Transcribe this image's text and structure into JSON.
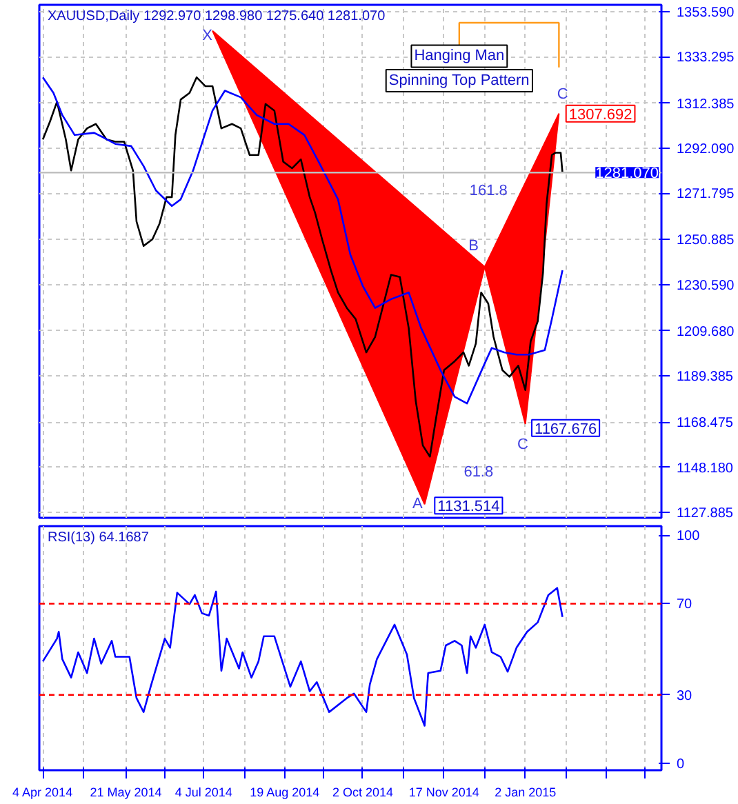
{
  "chart_data": [
    {
      "type": "line",
      "title": "XAUUSD,Daily  1292.970 1298.980 1275.640 1281.070",
      "xlim": [
        "2014-04-02",
        "2015-03-20"
      ],
      "ylim": [
        1125.4,
        1356.7
      ],
      "xticks": [
        {
          "value": "2014-04-04",
          "label": null
        },
        {
          "value": "2014-04-27",
          "label": null
        },
        {
          "value": "2014-05-21",
          "label": null
        },
        {
          "value": "2014-06-12",
          "label": null
        },
        {
          "value": "2014-07-04",
          "label": null
        },
        {
          "value": "2014-07-27",
          "label": null
        },
        {
          "value": "2014-08-19",
          "label": null
        },
        {
          "value": "2014-09-10",
          "label": null
        },
        {
          "value": "2014-10-02",
          "label": null
        },
        {
          "value": "2014-10-25",
          "label": null
        },
        {
          "value": "2014-11-17",
          "label": null
        },
        {
          "value": "2014-12-10",
          "label": null
        },
        {
          "value": "2015-01-02",
          "label": null
        },
        {
          "value": "2015-01-25",
          "label": null
        },
        {
          "value": "2015-02-17",
          "label": null
        },
        {
          "value": "2015-03-11",
          "label": null
        }
      ],
      "yticks": [
        {
          "value": 1127.885,
          "label": "1127.885"
        },
        {
          "value": 1148.18,
          "label": "1148.180"
        },
        {
          "value": 1168.475,
          "label": "1168.475"
        },
        {
          "value": 1189.385,
          "label": "1189.385"
        },
        {
          "value": 1209.68,
          "label": "1209.680"
        },
        {
          "value": 1230.59,
          "label": "1230.590"
        },
        {
          "value": 1250.885,
          "label": "1250.885"
        },
        {
          "value": 1271.795,
          "label": "1271.795"
        },
        {
          "value": 1292.09,
          "label": "1292.090"
        },
        {
          "value": 1312.385,
          "label": "1312.385"
        },
        {
          "value": 1333.295,
          "label": "1333.295"
        },
        {
          "value": 1353.59,
          "label": "1353.590"
        }
      ],
      "tick_labels": "y",
      "grid": true,
      "series": [
        {
          "type": "area",
          "color": "#ff0000",
          "x": [
            "2014-07-09",
            "2014-11-06",
            "2014-12-10"
          ],
          "values": [
            1345,
            1131.514,
            1238.6
          ]
        },
        {
          "type": "area",
          "color": "#ff0000",
          "x": [
            "2014-12-10",
            "2015-01-02",
            "2015-01-21"
          ],
          "values": [
            1238.6,
            1167.676,
            1307.692
          ]
        },
        {
          "type": "line",
          "color": "#000000",
          "x": [
            "2014-04-04",
            "2014-04-08",
            "2014-04-12",
            "2014-04-17",
            "2014-04-20",
            "2014-04-24",
            "2014-04-29",
            "2014-05-04",
            "2014-05-10",
            "2014-05-15",
            "2014-05-20",
            "2014-05-25",
            "2014-05-27",
            "2014-05-31",
            "2014-06-05",
            "2014-06-09",
            "2014-06-13",
            "2014-06-16",
            "2014-06-18",
            "2014-06-21",
            "2014-06-26",
            "2014-06-30",
            "2014-07-05",
            "2014-07-09",
            "2014-07-14",
            "2014-07-20",
            "2014-07-25",
            "2014-07-30",
            "2014-08-04",
            "2014-08-08",
            "2014-08-13",
            "2014-08-18",
            "2014-08-23",
            "2014-08-28",
            "2014-09-02",
            "2014-09-05",
            "2014-09-09",
            "2014-09-14",
            "2014-09-18",
            "2014-09-23",
            "2014-09-28",
            "2014-10-04",
            "2014-10-09",
            "2014-10-18",
            "2014-10-23",
            "2014-10-28",
            "2014-11-01",
            "2014-11-05",
            "2014-11-09",
            "2014-11-12",
            "2014-11-17",
            "2014-11-23",
            "2014-11-28",
            "2014-12-01",
            "2014-12-05",
            "2014-12-08",
            "2014-12-12",
            "2014-12-15",
            "2014-12-20",
            "2014-12-24",
            "2014-12-29",
            "2015-01-02",
            "2015-01-05",
            "2015-01-09",
            "2015-01-12",
            "2015-01-14",
            "2015-01-17",
            "2015-01-19",
            "2015-01-22",
            "2015-01-23"
          ],
          "values": [
            1296,
            1304,
            1313,
            1296,
            1282,
            1296,
            1301,
            1303,
            1296,
            1295,
            1295,
            1282,
            1259,
            1248,
            1251,
            1258,
            1270,
            1270,
            1298,
            1314,
            1317,
            1324,
            1320,
            1320,
            1301,
            1303,
            1301,
            1289,
            1289,
            1312,
            1309,
            1286,
            1283,
            1287,
            1270,
            1263,
            1251,
            1237,
            1227,
            1220,
            1215,
            1200,
            1207,
            1235,
            1234,
            1211,
            1178,
            1158,
            1153,
            1168,
            1192,
            1196,
            1200,
            1194,
            1204,
            1227,
            1222,
            1207,
            1192,
            1189,
            1194,
            1183,
            1205,
            1214,
            1236,
            1267,
            1289,
            1290,
            1290,
            1281.07
          ]
        },
        {
          "type": "line",
          "color": "#0000ff",
          "x": [
            "2014-04-04",
            "2014-04-10",
            "2014-04-15",
            "2014-04-22",
            "2014-05-03",
            "2014-05-08",
            "2014-05-15",
            "2014-05-24",
            "2014-05-31",
            "2014-06-07",
            "2014-06-16",
            "2014-06-21",
            "2014-06-28",
            "2014-07-09",
            "2014-07-16",
            "2014-07-25",
            "2014-08-03",
            "2014-08-13",
            "2014-08-21",
            "2014-08-30",
            "2014-09-07",
            "2014-09-18",
            "2014-09-25",
            "2014-10-02",
            "2014-10-09",
            "2014-10-18",
            "2014-10-28",
            "2014-11-04",
            "2014-11-15",
            "2014-11-23",
            "2014-11-30",
            "2014-12-10",
            "2014-12-14",
            "2014-12-21",
            "2014-12-28",
            "2015-01-04",
            "2015-01-13",
            "2015-01-17",
            "2015-01-23"
          ],
          "values": [
            1324,
            1317,
            1307,
            1298,
            1299,
            1297,
            1294,
            1293,
            1284,
            1273,
            1266,
            1269,
            1282,
            1309,
            1318,
            1315,
            1307,
            1303,
            1303,
            1298,
            1286,
            1269,
            1244,
            1230,
            1220,
            1224,
            1227,
            1211,
            1192,
            1180,
            1177,
            1195,
            1202,
            1200,
            1199,
            1199,
            1201,
            1215,
            1237
          ]
        }
      ],
      "ref_lines": [
        {
          "axis": "y",
          "value": 1281.07,
          "label": "1281.070",
          "color": "#c0c0c0",
          "line_style": "solid"
        }
      ],
      "annotations": [
        "Hanging Man",
        "Spinning Top Pattern",
        "X",
        "A",
        "B",
        "C",
        "C",
        "161.8",
        "61.8",
        "1131.514",
        "1167.676",
        "1307.692"
      ]
    },
    {
      "type": "line",
      "title": "RSI(13) 64.1687",
      "xlim": [
        "2014-04-02",
        "2015-03-20"
      ],
      "ylim": [
        -3,
        104
      ],
      "xticks": [
        {
          "value": "2014-04-04",
          "label": "4 Apr 2014"
        },
        {
          "value": "2014-04-27",
          "label": null
        },
        {
          "value": "2014-05-21",
          "label": "21 May 2014"
        },
        {
          "value": "2014-06-12",
          "label": null
        },
        {
          "value": "2014-07-04",
          "label": "4 Jul 2014"
        },
        {
          "value": "2014-07-27",
          "label": null
        },
        {
          "value": "2014-08-19",
          "label": "19 Aug 2014"
        },
        {
          "value": "2014-09-10",
          "label": null
        },
        {
          "value": "2014-10-02",
          "label": "2 Oct 2014"
        },
        {
          "value": "2014-10-25",
          "label": null
        },
        {
          "value": "2014-11-17",
          "label": "17 Nov 2014"
        },
        {
          "value": "2014-12-10",
          "label": null
        },
        {
          "value": "2015-01-02",
          "label": "2 Jan 2015"
        },
        {
          "value": "2015-01-25",
          "label": null
        },
        {
          "value": "2015-02-17",
          "label": null
        },
        {
          "value": "2015-03-11",
          "label": null
        }
      ],
      "yticks": [
        0,
        30,
        70,
        100
      ],
      "grid": "x",
      "series": [
        {
          "color": "#0000ff",
          "x": [
            "2014-04-04",
            "2014-04-12",
            "2014-04-13",
            "2014-04-15",
            "2014-04-20",
            "2014-04-24",
            "2014-04-29",
            "2014-05-03",
            "2014-05-07",
            "2014-05-13",
            "2014-05-15",
            "2014-05-23",
            "2014-05-27",
            "2014-05-31",
            "2014-06-04",
            "2014-06-12",
            "2014-06-15",
            "2014-06-19",
            "2014-06-26",
            "2014-06-29",
            "2014-07-03",
            "2014-07-07",
            "2014-07-11",
            "2014-07-14",
            "2014-07-17",
            "2014-07-24",
            "2014-07-26",
            "2014-07-31",
            "2014-08-04",
            "2014-08-07",
            "2014-08-13",
            "2014-08-22",
            "2014-08-28",
            "2014-09-02",
            "2014-09-06",
            "2014-09-13",
            "2014-09-23",
            "2014-09-27",
            "2014-10-04",
            "2014-10-06",
            "2014-10-10",
            "2014-10-20",
            "2014-10-27",
            "2014-10-31",
            "2014-11-06",
            "2014-11-08",
            "2014-11-15",
            "2014-11-18",
            "2014-11-23",
            "2014-11-27",
            "2014-11-30",
            "2014-12-02",
            "2014-12-05",
            "2014-12-10",
            "2014-12-14",
            "2014-12-19",
            "2014-12-23",
            "2014-12-28",
            "2015-01-03",
            "2015-01-09",
            "2015-01-15",
            "2015-01-20",
            "2015-01-23"
          ],
          "values": [
            44.7,
            54.7,
            57.7,
            45.7,
            37.6,
            48.7,
            39.6,
            54.7,
            43.7,
            53.7,
            46.7,
            46.7,
            28.6,
            22.5,
            33.6,
            54.7,
            50.7,
            74.8,
            69.8,
            73.8,
            65.8,
            64.8,
            75.3,
            40.6,
            54.7,
            41.6,
            48.7,
            37.6,
            44.7,
            55.7,
            55.7,
            33.6,
            44.7,
            31.6,
            35.6,
            22.5,
            28.6,
            30.6,
            22.5,
            34.6,
            45.7,
            60.8,
            47.7,
            28.6,
            16.5,
            39.6,
            40.6,
            51.7,
            53.7,
            51.7,
            39.6,
            55.7,
            50.7,
            60.8,
            48.7,
            46.7,
            40.2,
            50.7,
            57.7,
            61.8,
            73.8,
            76.9,
            64.1687
          ]
        }
      ],
      "ref_lines": [
        {
          "axis": "y",
          "value": 70,
          "color": "#ff0000",
          "line_style": "dashed"
        },
        {
          "axis": "y",
          "value": 30,
          "color": "#ff0000",
          "line_style": "dashed"
        }
      ]
    }
  ]
}
